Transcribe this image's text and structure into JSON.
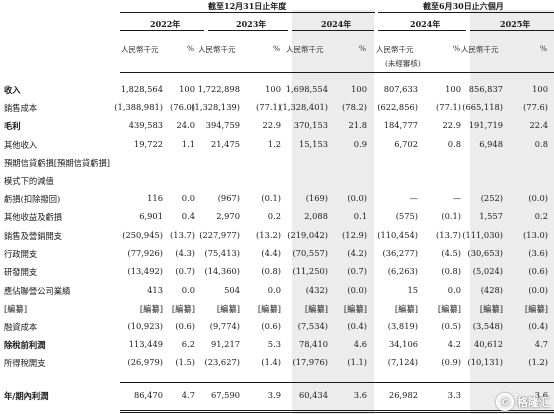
{
  "header": {
    "period_full_year": "截至12月31日止年度",
    "period_six_months": "截至6月30日止六個月",
    "years": [
      "2022年",
      "2023年",
      "2024年",
      "2024年",
      "2025年"
    ],
    "col_amount": "人民幣千元",
    "col_percent": "%",
    "unaudited": "(未經審核)"
  },
  "rows": [
    {
      "label": "收入",
      "bold": true,
      "values": [
        "1,828,564",
        "100",
        "1,722,898",
        "100",
        "1,698,554",
        "100",
        "807,633",
        "100",
        "856,837",
        "100"
      ]
    },
    {
      "label": "銷售成本",
      "bold": false,
      "values": [
        "(1,388,981)",
        "(76.0)",
        "(1,328,139)",
        "(77.1)",
        "(1,328,401)",
        "(78.2)",
        "(622,856)",
        "(77.1)",
        "(665,118)",
        "(77.6)"
      ]
    },
    {
      "label": "毛利",
      "bold": true,
      "values": [
        "439,583",
        "24.0",
        "394,759",
        "22.9",
        "370,153",
        "21.8",
        "184,777",
        "22.9",
        "191,719",
        "22.4"
      ]
    },
    {
      "label": "其他收入",
      "bold": false,
      "values": [
        "19,722",
        "1.1",
        "21,475",
        "1.2",
        "15,153",
        "0.9",
        "6,702",
        "0.8",
        "6,948",
        "0.8"
      ]
    },
    {
      "label": "預期信貸虧損[預期信貸虧損]",
      "bold": false,
      "values": [
        "",
        "",
        "",
        "",
        "",
        "",
        "",
        "",
        "",
        ""
      ]
    },
    {
      "label": "  模式下的減值",
      "bold": false,
      "values": [
        "",
        "",
        "",
        "",
        "",
        "",
        "",
        "",
        "",
        ""
      ]
    },
    {
      "label": "  虧損(扣除撥回)",
      "bold": false,
      "values": [
        "116",
        "0.0",
        "(967)",
        "(0.1)",
        "(169)",
        "(0.0)",
        "—",
        "—",
        "(252)",
        "(0.0)"
      ]
    },
    {
      "label": "其他收益及虧損",
      "bold": false,
      "values": [
        "6,901",
        "0.4",
        "2,970",
        "0.2",
        "2,088",
        "0.1",
        "(575)",
        "(0.1)",
        "1,557",
        "0.2"
      ]
    },
    {
      "label": "銷售及營銷開支",
      "bold": false,
      "values": [
        "(250,945)",
        "(13.7)",
        "(227,977)",
        "(13.2)",
        "(219,042)",
        "(12.9)",
        "(110,454)",
        "(13.7)",
        "(111,030)",
        "(13.0)"
      ]
    },
    {
      "label": "行政開支",
      "bold": false,
      "values": [
        "(77,926)",
        "(4.3)",
        "(75,413)",
        "(4.4)",
        "(70,557)",
        "(4.2)",
        "(36,277)",
        "(4.5)",
        "(30,653)",
        "(3.6)"
      ]
    },
    {
      "label": "研發開支",
      "bold": false,
      "values": [
        "(13,492)",
        "(0.7)",
        "(14,360)",
        "(0.8)",
        "(11,250)",
        "(0.7)",
        "(6,263)",
        "(0.8)",
        "(5,024)",
        "(0.6)"
      ]
    },
    {
      "label": "應佔聯營公司業績",
      "bold": false,
      "values": [
        "413",
        "0.0",
        "504",
        "0.0",
        "(432)",
        "(0.0)",
        "15",
        "0.0",
        "(428)",
        "(0.0)"
      ]
    },
    {
      "label": "[編纂]",
      "bold": false,
      "values": [
        "[編纂]",
        "[編纂]",
        "[編纂]",
        "[編纂]",
        "[編纂]",
        "[編纂]",
        "[編纂]",
        "[編纂]",
        "[編纂]",
        "[編纂]"
      ]
    },
    {
      "label": "融資成本",
      "bold": false,
      "values": [
        "(10,923)",
        "(0.6)",
        "(9,774)",
        "(0.6)",
        "(7,534)",
        "(0.4)",
        "(3,819)",
        "(0.5)",
        "(3,548)",
        "(0.4)"
      ]
    },
    {
      "label": "除稅前利潤",
      "bold": true,
      "values": [
        "113,449",
        "6.2",
        "91,217",
        "5.3",
        "78,410",
        "4.6",
        "34,106",
        "4.2",
        "40,612",
        "4.7"
      ]
    },
    {
      "label": "所得稅開支",
      "bold": false,
      "values": [
        "(26,979)",
        "(1.5)",
        "(23,627)",
        "(1.4)",
        "(17,976)",
        "(1.1)",
        "(7,124)",
        "(0.9)",
        "(10,131)",
        "(1.2)"
      ]
    },
    {
      "label": "年/期內利潤",
      "bold": true,
      "values": [
        "86,470",
        "4.7",
        "67,590",
        "3.9",
        "60,434",
        "3.6",
        "26,982",
        "3.3",
        "",
        "3.6"
      ]
    }
  ],
  "watermark": {
    "text": "格隆汇",
    "logo": "G"
  },
  "colors": {
    "shade": "#ececec",
    "rule": "#1a1a1a"
  }
}
